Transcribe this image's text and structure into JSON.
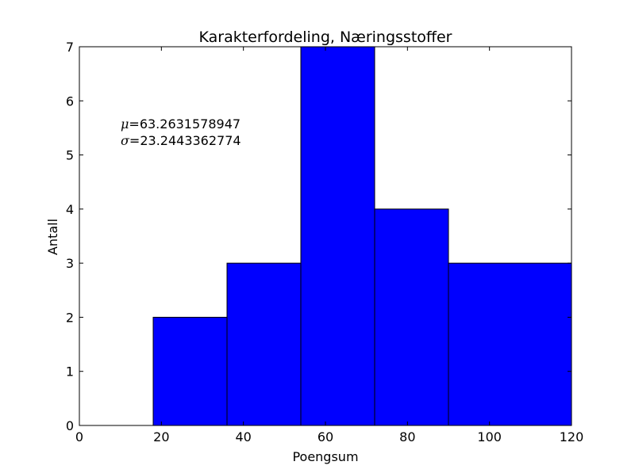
{
  "chart_data": {
    "type": "bar",
    "title": "Karakterfordeling, Næringsstoffer",
    "xlabel": "Poengsum",
    "ylabel": "Antall",
    "xlim": [
      0,
      120
    ],
    "ylim": [
      0,
      7
    ],
    "xticks": [
      0,
      20,
      40,
      60,
      80,
      100,
      120
    ],
    "yticks": [
      0,
      1,
      2,
      3,
      4,
      5,
      6,
      7
    ],
    "grid": false,
    "bar_color": "#0000ff",
    "bins": [
      {
        "x0": 18,
        "x1": 36,
        "value": 2
      },
      {
        "x0": 36,
        "x1": 54,
        "value": 3
      },
      {
        "x0": 54,
        "x1": 72,
        "value": 7
      },
      {
        "x0": 72,
        "x1": 90,
        "value": 4
      },
      {
        "x0": 90,
        "x1": 120,
        "value": 3
      }
    ],
    "annotations": [
      {
        "symbol": "μ",
        "text": "=63.2631578947"
      },
      {
        "symbol": "σ",
        "text": "=23.2443362774"
      }
    ]
  }
}
